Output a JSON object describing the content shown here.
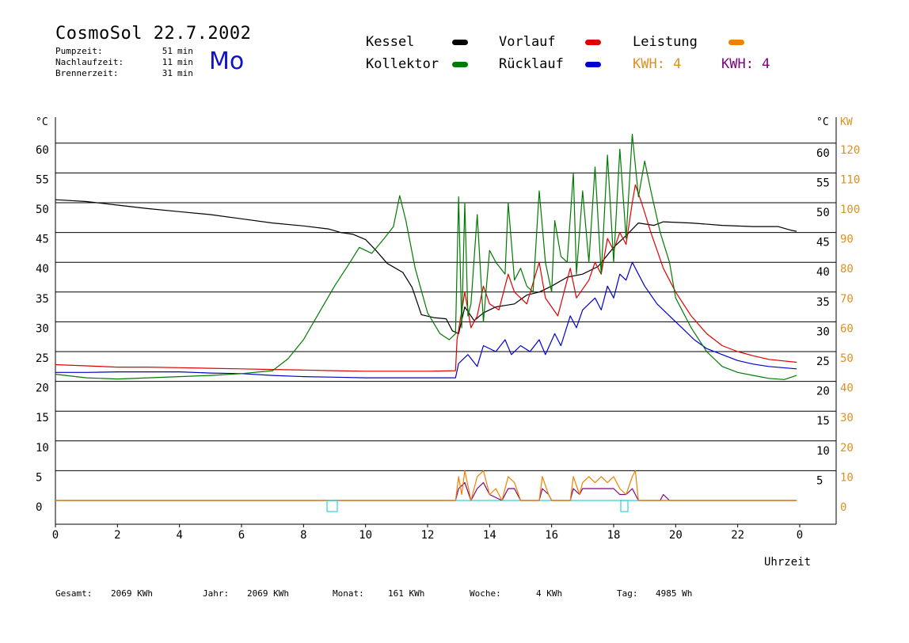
{
  "header": {
    "title": "CosmoSol 22.7.2002",
    "day": "Mo",
    "info": [
      {
        "label": "Pumpzeit:",
        "value": "51",
        "unit": "min"
      },
      {
        "label": "Nachlaufzeit:",
        "value": "11",
        "unit": "min"
      },
      {
        "label": "Brennerzeit:",
        "value": "31",
        "unit": "min"
      }
    ]
  },
  "legend": {
    "kessel": {
      "label": "Kessel",
      "color": "#000000"
    },
    "kollektor": {
      "label": "Kollektor",
      "color": "#007a00"
    },
    "vorlauf": {
      "label": "Vorlauf",
      "color": "#e00000"
    },
    "ruecklauf": {
      "label": "Rücklauf",
      "color": "#0000d0"
    },
    "leistung": {
      "label": "Leistung",
      "color": "#f08000"
    },
    "kwh1": {
      "label": "KWH: 4",
      "color": "#e09020"
    },
    "kwh2": {
      "label": "KWH: 4",
      "color": "#800080"
    }
  },
  "footer": [
    {
      "label": "Gesamt:",
      "value": "2069 KWh"
    },
    {
      "label": "Jahr:",
      "value": "2069 KWh"
    },
    {
      "label": "Monat:",
      "value": "161 KWh"
    },
    {
      "label": "Woche:",
      "value": "4 KWh"
    },
    {
      "label": "Tag:",
      "value": "4985 Wh"
    }
  ],
  "chart_data": {
    "type": "line",
    "xlabel": "Uhrzeit",
    "x_ticks": [
      "0",
      "2",
      "4",
      "6",
      "8",
      "10",
      "12",
      "14",
      "16",
      "18",
      "20",
      "22",
      "0"
    ],
    "xlim": [
      0,
      24
    ],
    "ylim_left": [
      0,
      65
    ],
    "ylim_right_kw": [
      0,
      130
    ],
    "left_unit": "°C",
    "right_units": [
      "°C",
      "KW"
    ],
    "left_ticks": [
      "0",
      "5",
      "10",
      "15",
      "20",
      "25",
      "30",
      "35",
      "40",
      "45",
      "50",
      "55",
      "60"
    ],
    "right_temp_ticks": [
      "5",
      "10",
      "15",
      "20",
      "25",
      "30",
      "35",
      "40",
      "45",
      "50",
      "55",
      "60"
    ],
    "right_kw_ticks": [
      "0",
      "10",
      "20",
      "30",
      "40",
      "50",
      "60",
      "70",
      "80",
      "90",
      "100",
      "110",
      "120"
    ],
    "series": [
      {
        "name": "Kessel",
        "color": "#000000",
        "points": [
          [
            0,
            50.5
          ],
          [
            1,
            50.2
          ],
          [
            2,
            49.6
          ],
          [
            3,
            49
          ],
          [
            4,
            48.5
          ],
          [
            5,
            48
          ],
          [
            6,
            47.3
          ],
          [
            7,
            46.6
          ],
          [
            8,
            46.1
          ],
          [
            8.8,
            45.6
          ],
          [
            9.2,
            45
          ],
          [
            9.6,
            44.7
          ],
          [
            10,
            43.8
          ],
          [
            10.3,
            42.2
          ],
          [
            10.7,
            39.8
          ],
          [
            11.2,
            38.3
          ],
          [
            11.5,
            35.8
          ],
          [
            11.8,
            31.2
          ],
          [
            12.2,
            30.7
          ],
          [
            12.6,
            30.5
          ],
          [
            12.8,
            28.5
          ],
          [
            13,
            28
          ],
          [
            13.2,
            32.5
          ],
          [
            13.5,
            30.2
          ],
          [
            13.8,
            31.5
          ],
          [
            14.2,
            32.5
          ],
          [
            14.8,
            33
          ],
          [
            15.2,
            34.5
          ],
          [
            15.6,
            35
          ],
          [
            16,
            36
          ],
          [
            16.5,
            37.5
          ],
          [
            17,
            38
          ],
          [
            17.5,
            39.3
          ],
          [
            18,
            42.5
          ],
          [
            18.4,
            44.5
          ],
          [
            18.8,
            46.6
          ],
          [
            19.3,
            46.2
          ],
          [
            19.6,
            46.8
          ],
          [
            20.5,
            46.6
          ],
          [
            21.5,
            46.2
          ],
          [
            22.5,
            46
          ],
          [
            23.3,
            46
          ],
          [
            23.7,
            45.4
          ],
          [
            23.9,
            45.2
          ]
        ]
      },
      {
        "name": "Kollektor",
        "color": "#007a00",
        "points": [
          [
            0,
            21.2
          ],
          [
            1,
            20.6
          ],
          [
            2,
            20.4
          ],
          [
            3,
            20.6
          ],
          [
            4,
            20.8
          ],
          [
            5,
            21
          ],
          [
            6,
            21.3
          ],
          [
            7,
            21.8
          ],
          [
            7.5,
            23.8
          ],
          [
            8,
            27
          ],
          [
            8.5,
            31.5
          ],
          [
            9,
            36
          ],
          [
            9.5,
            40
          ],
          [
            9.8,
            42.5
          ],
          [
            10.2,
            41.5
          ],
          [
            10.6,
            44
          ],
          [
            10.9,
            46
          ],
          [
            11.1,
            51.2
          ],
          [
            11.3,
            47
          ],
          [
            11.6,
            39
          ],
          [
            12,
            31.5
          ],
          [
            12.4,
            28
          ],
          [
            12.7,
            27
          ],
          [
            12.9,
            28
          ],
          [
            13,
            51
          ],
          [
            13.1,
            29
          ],
          [
            13.2,
            50
          ],
          [
            13.3,
            31
          ],
          [
            13.4,
            33
          ],
          [
            13.6,
            48
          ],
          [
            13.8,
            30
          ],
          [
            14,
            42
          ],
          [
            14.2,
            40
          ],
          [
            14.5,
            38
          ],
          [
            14.6,
            50
          ],
          [
            14.8,
            37
          ],
          [
            15,
            39
          ],
          [
            15.2,
            36
          ],
          [
            15.4,
            35
          ],
          [
            15.6,
            52
          ],
          [
            15.8,
            40
          ],
          [
            16,
            35
          ],
          [
            16.1,
            47
          ],
          [
            16.3,
            41
          ],
          [
            16.5,
            40
          ],
          [
            16.7,
            55
          ],
          [
            16.8,
            38
          ],
          [
            17,
            52
          ],
          [
            17.2,
            40
          ],
          [
            17.4,
            56
          ],
          [
            17.6,
            38
          ],
          [
            17.8,
            58
          ],
          [
            18,
            40
          ],
          [
            18.2,
            59
          ],
          [
            18.4,
            44
          ],
          [
            18.6,
            61.5
          ],
          [
            18.8,
            51
          ],
          [
            19,
            57
          ],
          [
            19.2,
            52
          ],
          [
            19.5,
            45
          ],
          [
            19.8,
            40
          ],
          [
            20,
            34
          ],
          [
            20.5,
            29
          ],
          [
            21,
            25
          ],
          [
            21.5,
            22.5
          ],
          [
            22,
            21.5
          ],
          [
            22.5,
            21
          ],
          [
            23,
            20.5
          ],
          [
            23.5,
            20.3
          ],
          [
            23.9,
            21
          ]
        ]
      },
      {
        "name": "Vorlauf",
        "color": "#e00000",
        "points": [
          [
            0,
            22.8
          ],
          [
            1,
            22.6
          ],
          [
            2,
            22.4
          ],
          [
            3,
            22.4
          ],
          [
            4,
            22.3
          ],
          [
            5,
            22.2
          ],
          [
            6,
            22.1
          ],
          [
            7,
            22
          ],
          [
            8,
            21.9
          ],
          [
            9,
            21.8
          ],
          [
            10,
            21.7
          ],
          [
            11,
            21.7
          ],
          [
            12,
            21.7
          ],
          [
            12.9,
            21.8
          ],
          [
            12.95,
            27
          ],
          [
            13.2,
            35
          ],
          [
            13.4,
            29
          ],
          [
            13.6,
            31
          ],
          [
            13.8,
            36
          ],
          [
            14,
            33
          ],
          [
            14.3,
            32
          ],
          [
            14.6,
            38
          ],
          [
            14.8,
            35
          ],
          [
            15.2,
            33
          ],
          [
            15.6,
            40
          ],
          [
            15.8,
            34
          ],
          [
            16.2,
            31
          ],
          [
            16.6,
            39
          ],
          [
            16.8,
            34
          ],
          [
            17.2,
            37
          ],
          [
            17.4,
            40
          ],
          [
            17.6,
            38
          ],
          [
            17.8,
            44
          ],
          [
            18,
            42
          ],
          [
            18.2,
            45
          ],
          [
            18.4,
            43
          ],
          [
            18.6,
            50
          ],
          [
            18.7,
            53
          ],
          [
            18.9,
            50
          ],
          [
            19.2,
            45
          ],
          [
            19.6,
            39
          ],
          [
            20,
            35
          ],
          [
            20.5,
            31
          ],
          [
            21,
            28
          ],
          [
            21.5,
            26
          ],
          [
            22,
            25
          ],
          [
            22.5,
            24.3
          ],
          [
            23,
            23.7
          ],
          [
            23.9,
            23.2
          ]
        ]
      },
      {
        "name": "Rücklauf",
        "color": "#0000d0",
        "points": [
          [
            0,
            21.5
          ],
          [
            1,
            21.5
          ],
          [
            2,
            21.6
          ],
          [
            3,
            21.6
          ],
          [
            4,
            21.6
          ],
          [
            5,
            21.4
          ],
          [
            6,
            21.3
          ],
          [
            7,
            21
          ],
          [
            8,
            20.8
          ],
          [
            9,
            20.7
          ],
          [
            10,
            20.6
          ],
          [
            11,
            20.6
          ],
          [
            12,
            20.6
          ],
          [
            12.9,
            20.6
          ],
          [
            13,
            23
          ],
          [
            13.3,
            24.5
          ],
          [
            13.6,
            22.5
          ],
          [
            13.8,
            26
          ],
          [
            14.2,
            25
          ],
          [
            14.5,
            27
          ],
          [
            14.7,
            24.5
          ],
          [
            15,
            26
          ],
          [
            15.3,
            25
          ],
          [
            15.6,
            27
          ],
          [
            15.8,
            24.5
          ],
          [
            16.1,
            28
          ],
          [
            16.3,
            26
          ],
          [
            16.6,
            31
          ],
          [
            16.8,
            29
          ],
          [
            17,
            32
          ],
          [
            17.4,
            34
          ],
          [
            17.6,
            32
          ],
          [
            17.8,
            36
          ],
          [
            18,
            34
          ],
          [
            18.2,
            38
          ],
          [
            18.4,
            37
          ],
          [
            18.6,
            40
          ],
          [
            18.8,
            38
          ],
          [
            19,
            36
          ],
          [
            19.4,
            33
          ],
          [
            19.8,
            31
          ],
          [
            20.2,
            29
          ],
          [
            20.6,
            27
          ],
          [
            21,
            25.5
          ],
          [
            21.5,
            24.5
          ],
          [
            22,
            23.5
          ],
          [
            22.5,
            22.9
          ],
          [
            23,
            22.5
          ],
          [
            23.9,
            22.1
          ]
        ]
      },
      {
        "name": "Leistung",
        "color": "#f08000",
        "points": [
          [
            0,
            0
          ],
          [
            12.9,
            0
          ],
          [
            13,
            4
          ],
          [
            13.1,
            1
          ],
          [
            13.2,
            5
          ],
          [
            13.4,
            0
          ],
          [
            13.6,
            4
          ],
          [
            13.8,
            5
          ],
          [
            14,
            1
          ],
          [
            14.2,
            2
          ],
          [
            14.4,
            0
          ],
          [
            14.6,
            4
          ],
          [
            14.8,
            3
          ],
          [
            15,
            0
          ],
          [
            15.6,
            0
          ],
          [
            15.7,
            4
          ],
          [
            15.9,
            1
          ],
          [
            16,
            0
          ],
          [
            16.6,
            0
          ],
          [
            16.7,
            4
          ],
          [
            16.9,
            1
          ],
          [
            17,
            3
          ],
          [
            17.2,
            4
          ],
          [
            17.4,
            3
          ],
          [
            17.6,
            4
          ],
          [
            17.8,
            3
          ],
          [
            18,
            4
          ],
          [
            18.2,
            2
          ],
          [
            18.4,
            1
          ],
          [
            18.6,
            4
          ],
          [
            18.7,
            5
          ],
          [
            18.8,
            0
          ],
          [
            23.9,
            0
          ]
        ]
      },
      {
        "name": "KWH",
        "color": "#800080",
        "points": [
          [
            0,
            0
          ],
          [
            12.9,
            0
          ],
          [
            13,
            2
          ],
          [
            13.2,
            3
          ],
          [
            13.4,
            0
          ],
          [
            13.6,
            2
          ],
          [
            13.8,
            3
          ],
          [
            14,
            1
          ],
          [
            14.4,
            0
          ],
          [
            14.6,
            2
          ],
          [
            14.8,
            2
          ],
          [
            15,
            0
          ],
          [
            15.6,
            0
          ],
          [
            15.7,
            2
          ],
          [
            15.9,
            1
          ],
          [
            16,
            0
          ],
          [
            16.6,
            0
          ],
          [
            16.7,
            2
          ],
          [
            16.9,
            1
          ],
          [
            17,
            2
          ],
          [
            17.2,
            2
          ],
          [
            17.4,
            2
          ],
          [
            17.6,
            2
          ],
          [
            17.8,
            2
          ],
          [
            18,
            2
          ],
          [
            18.2,
            1
          ],
          [
            18.4,
            1
          ],
          [
            18.6,
            2
          ],
          [
            18.8,
            0
          ],
          [
            19.5,
            0
          ],
          [
            19.6,
            1
          ],
          [
            19.8,
            0
          ],
          [
            23.9,
            0
          ]
        ]
      },
      {
        "name": "Pumpe",
        "color": "#30d0d8",
        "points": [
          [
            0,
            0
          ],
          [
            23.9,
            0
          ]
        ]
      }
    ]
  }
}
